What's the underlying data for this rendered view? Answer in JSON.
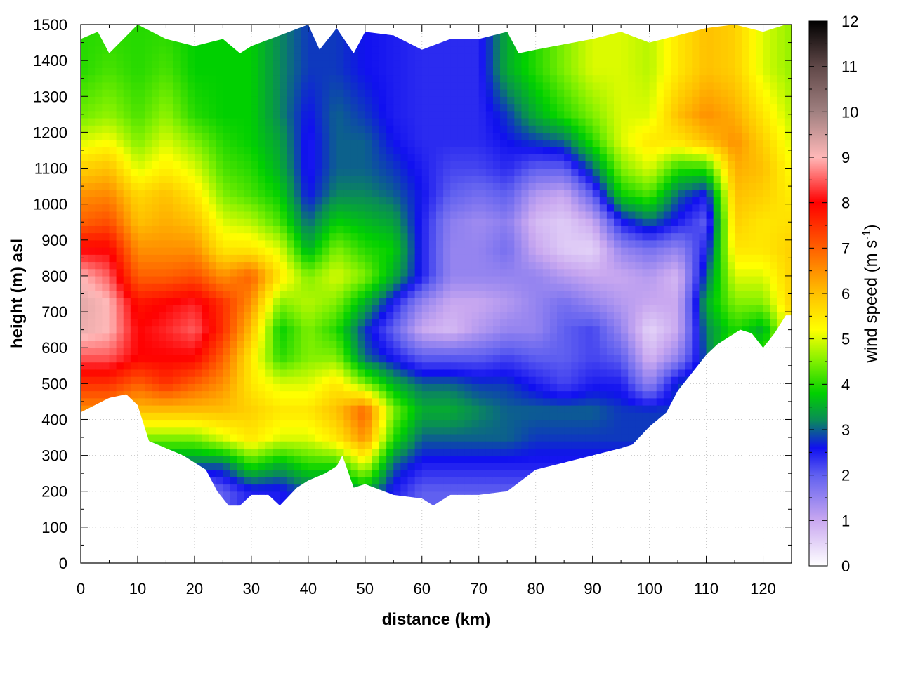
{
  "chart_data": {
    "type": "heatmap",
    "title": "",
    "xlabel": "distance (km)",
    "ylabel": "height (m) asl",
    "xlim": [
      0,
      125
    ],
    "ylim": [
      0,
      1500
    ],
    "x_ticks": [
      0,
      10,
      20,
      30,
      40,
      50,
      60,
      70,
      80,
      90,
      100,
      110,
      120
    ],
    "y_ticks": [
      0,
      100,
      200,
      300,
      400,
      500,
      600,
      700,
      800,
      900,
      1000,
      1100,
      1200,
      1300,
      1400,
      1500
    ],
    "grid": true,
    "colorbar": {
      "label_main": "wind speed (m s",
      "label_sup": "-1",
      "label_end": ")",
      "range": [
        0,
        12
      ],
      "ticks": [
        0,
        1,
        2,
        3,
        4,
        5,
        6,
        7,
        8,
        9,
        10,
        11,
        12
      ],
      "colors": [
        {
          "v": 0.0,
          "c": "#ffffff"
        },
        {
          "v": 1.0,
          "c": "#c9a8f0"
        },
        {
          "v": 2.0,
          "c": "#6060f0"
        },
        {
          "v": 2.6,
          "c": "#1010f0"
        },
        {
          "v": 3.2,
          "c": "#0a8a5a"
        },
        {
          "v": 3.8,
          "c": "#00d000"
        },
        {
          "v": 4.5,
          "c": "#80f000"
        },
        {
          "v": 5.2,
          "c": "#ffff00"
        },
        {
          "v": 6.0,
          "c": "#ffc000"
        },
        {
          "v": 7.0,
          "c": "#ff6000"
        },
        {
          "v": 8.0,
          "c": "#ff0000"
        },
        {
          "v": 9.0,
          "c": "#ffb8b8"
        },
        {
          "v": 10.0,
          "c": "#a08080"
        },
        {
          "v": 11.0,
          "c": "#604848"
        },
        {
          "v": 12.0,
          "c": "#000000"
        }
      ]
    },
    "terrain": {
      "x": [
        0,
        5,
        8,
        10,
        12,
        15,
        18,
        20,
        22,
        24,
        26,
        28,
        30,
        33,
        35,
        38,
        40,
        43,
        45,
        46,
        48,
        50,
        55,
        60,
        62,
        65,
        70,
        75,
        80,
        85,
        90,
        95,
        97,
        100,
        103,
        105,
        108,
        110,
        112,
        114,
        116,
        118,
        120,
        122,
        124
      ],
      "y": [
        420,
        460,
        470,
        440,
        340,
        320,
        300,
        280,
        260,
        200,
        160,
        160,
        190,
        190,
        160,
        210,
        230,
        250,
        270,
        300,
        210,
        220,
        190,
        180,
        160,
        190,
        190,
        200,
        260,
        280,
        300,
        320,
        330,
        380,
        420,
        480,
        540,
        580,
        610,
        630,
        650,
        640,
        600,
        640,
        690
      ]
    },
    "top_boundary": {
      "x": [
        0,
        3,
        5,
        10,
        15,
        20,
        25,
        28,
        30,
        35,
        40,
        42,
        45,
        48,
        50,
        55,
        60,
        65,
        70,
        75,
        77,
        80,
        90,
        95,
        100,
        105,
        110,
        115,
        120,
        124
      ],
      "y": [
        1460,
        1480,
        1420,
        1500,
        1460,
        1440,
        1460,
        1420,
        1440,
        1470,
        1500,
        1430,
        1490,
        1420,
        1480,
        1470,
        1430,
        1460,
        1460,
        1480,
        1420,
        1430,
        1460,
        1480,
        1450,
        1470,
        1490,
        1500,
        1480,
        1500
      ]
    },
    "speed_profiles": [
      {
        "x": 0,
        "z": [
          3.5,
          4.0,
          5.0,
          6.5,
          7.5,
          8.5,
          9.2,
          9.3,
          9.0,
          8.0,
          7.0,
          6.5,
          5.8,
          5.0,
          4.4,
          4.0,
          4.0
        ]
      },
      {
        "x": 5,
        "z": [
          3.5,
          4.0,
          5.0,
          6.5,
          7.5,
          8.5,
          9.0,
          9.0,
          8.5,
          8.0,
          7.2,
          6.6,
          6.0,
          5.2,
          4.6,
          4.2,
          4.0
        ]
      },
      {
        "x": 10,
        "z": [
          2.0,
          3.0,
          4.5,
          6.0,
          7.0,
          8.0,
          8.0,
          7.8,
          7.0,
          6.5,
          6.0,
          5.7,
          5.0,
          4.5,
          4.2,
          4.0,
          4.0
        ]
      },
      {
        "x": 15,
        "z": [
          2.0,
          3.0,
          4.5,
          6.0,
          7.5,
          8.0,
          8.2,
          8.0,
          7.0,
          6.5,
          6.2,
          6.0,
          5.4,
          5.0,
          4.6,
          4.2,
          4.0
        ]
      },
      {
        "x": 20,
        "z": [
          1.5,
          3.0,
          4.5,
          6.0,
          7.0,
          8.0,
          8.5,
          8.2,
          7.2,
          6.5,
          6.0,
          5.5,
          5.0,
          4.5,
          4.0,
          3.8,
          3.8
        ]
      },
      {
        "x": 25,
        "z": [
          2.0,
          3.0,
          5.0,
          6.0,
          6.5,
          7.0,
          7.5,
          7.5,
          6.5,
          5.5,
          5.0,
          4.5,
          4.2,
          4.0,
          3.8,
          3.8,
          3.8
        ]
      },
      {
        "x": 30,
        "z": [
          2.5,
          4.0,
          5.5,
          5.8,
          5.5,
          5.5,
          6.0,
          6.5,
          7.0,
          5.5,
          4.8,
          4.2,
          4.0,
          3.8,
          3.8,
          3.8,
          3.8
        ]
      },
      {
        "x": 35,
        "z": [
          2.5,
          3.5,
          5.0,
          5.5,
          5.0,
          4.0,
          3.8,
          4.5,
          5.5,
          5.0,
          4.2,
          3.8,
          3.5,
          3.4,
          3.2,
          3.2,
          3.2
        ]
      },
      {
        "x": 40,
        "z": [
          3.0,
          4.0,
          5.0,
          5.5,
          5.0,
          4.5,
          4.5,
          4.8,
          4.5,
          3.5,
          3.0,
          2.6,
          2.5,
          2.5,
          2.6,
          2.8,
          2.8
        ]
      },
      {
        "x": 45,
        "z": [
          3.0,
          4.0,
          5.5,
          6.0,
          5.5,
          4.5,
          4.0,
          4.5,
          5.0,
          4.5,
          3.8,
          3.2,
          3.0,
          3.0,
          3.0,
          2.8,
          2.8
        ]
      },
      {
        "x": 50,
        "z": [
          3.5,
          5.0,
          6.5,
          7.0,
          4.5,
          3.0,
          2.8,
          3.5,
          4.5,
          4.0,
          3.6,
          3.2,
          3.0,
          3.0,
          2.8,
          2.6,
          2.6
        ]
      },
      {
        "x": 55,
        "z": [
          2.5,
          3.0,
          4.0,
          4.5,
          3.5,
          2.5,
          2.0,
          2.5,
          3.5,
          3.8,
          3.4,
          3.0,
          2.8,
          2.6,
          2.5,
          2.5,
          2.5
        ]
      },
      {
        "x": 60,
        "z": [
          2.0,
          2.5,
          3.0,
          3.5,
          3.0,
          2.0,
          1.0,
          1.5,
          2.5,
          2.5,
          2.5,
          2.6,
          2.5,
          2.4,
          2.4,
          2.4,
          2.4
        ]
      },
      {
        "x": 65,
        "z": [
          2.0,
          2.5,
          3.0,
          3.5,
          3.0,
          2.0,
          0.8,
          1.0,
          1.5,
          1.5,
          1.6,
          2.0,
          2.2,
          2.4,
          2.4,
          2.4,
          2.4
        ]
      },
      {
        "x": 70,
        "z": [
          2.0,
          2.5,
          3.0,
          3.2,
          2.8,
          2.0,
          1.2,
          1.0,
          1.5,
          1.5,
          1.4,
          1.8,
          2.2,
          2.4,
          2.4,
          2.4,
          2.4
        ]
      },
      {
        "x": 75,
        "z": [
          2.0,
          2.5,
          3.0,
          3.0,
          2.8,
          2.2,
          1.5,
          1.2,
          1.5,
          1.8,
          1.6,
          2.0,
          2.4,
          2.6,
          2.8,
          3.5,
          3.5
        ]
      },
      {
        "x": 80,
        "z": [
          2.0,
          2.5,
          2.8,
          3.0,
          2.5,
          2.0,
          1.5,
          1.5,
          1.5,
          1.0,
          0.8,
          1.2,
          2.0,
          2.8,
          3.5,
          4.0,
          4.0
        ]
      },
      {
        "x": 85,
        "z": [
          2.0,
          2.5,
          2.8,
          3.0,
          2.2,
          2.0,
          2.0,
          1.8,
          1.2,
          0.6,
          0.6,
          1.0,
          2.0,
          3.0,
          4.0,
          4.5,
          4.5
        ]
      },
      {
        "x": 90,
        "z": [
          2.0,
          2.5,
          2.8,
          3.0,
          2.5,
          2.2,
          2.2,
          1.5,
          1.0,
          0.5,
          1.0,
          2.0,
          3.0,
          4.0,
          4.5,
          5.0,
          5.0
        ]
      },
      {
        "x": 95,
        "z": [
          2.0,
          2.5,
          2.8,
          2.8,
          2.5,
          2.0,
          1.5,
          1.2,
          1.0,
          1.5,
          2.5,
          3.8,
          4.5,
          5.0,
          5.0,
          5.0,
          5.0
        ]
      },
      {
        "x": 100,
        "z": [
          2.0,
          2.5,
          2.8,
          2.8,
          1.5,
          0.8,
          0.5,
          1.0,
          1.2,
          1.8,
          3.0,
          4.2,
          5.0,
          5.5,
          5.0,
          4.8,
          4.8
        ]
      },
      {
        "x": 105,
        "z": [
          2.0,
          2.5,
          2.8,
          2.8,
          2.8,
          1.5,
          1.0,
          1.0,
          0.8,
          1.5,
          2.5,
          3.0,
          4.0,
          5.5,
          6.0,
          5.5,
          5.5
        ]
      },
      {
        "x": 110,
        "z": [
          2.0,
          2.5,
          2.8,
          3.0,
          3.0,
          3.0,
          3.2,
          3.5,
          3.0,
          2.5,
          2.0,
          2.5,
          4.0,
          6.0,
          6.5,
          6.0,
          6.0
        ]
      },
      {
        "x": 115,
        "z": [
          4.0,
          4.5,
          5.0,
          5.5,
          5.5,
          4.5,
          4.0,
          4.5,
          5.0,
          5.5,
          5.8,
          6.0,
          6.2,
          6.5,
          6.2,
          5.8,
          5.8
        ]
      },
      {
        "x": 120,
        "z": [
          4.0,
          4.5,
          5.0,
          5.5,
          5.5,
          4.0,
          3.5,
          4.5,
          5.0,
          5.5,
          5.5,
          5.8,
          6.0,
          5.8,
          5.5,
          5.0,
          5.0
        ]
      },
      {
        "x": 125,
        "z": [
          4.0,
          4.5,
          5.0,
          5.5,
          5.5,
          5.5,
          5.5,
          5.8,
          5.8,
          5.8,
          5.6,
          5.4,
          5.2,
          5.0,
          4.8,
          4.6,
          4.6
        ]
      }
    ],
    "profile_heights": [
      200,
      275,
      350,
      425,
      500,
      575,
      650,
      725,
      800,
      875,
      950,
      1025,
      1100,
      1175,
      1250,
      1375,
      1500
    ]
  }
}
